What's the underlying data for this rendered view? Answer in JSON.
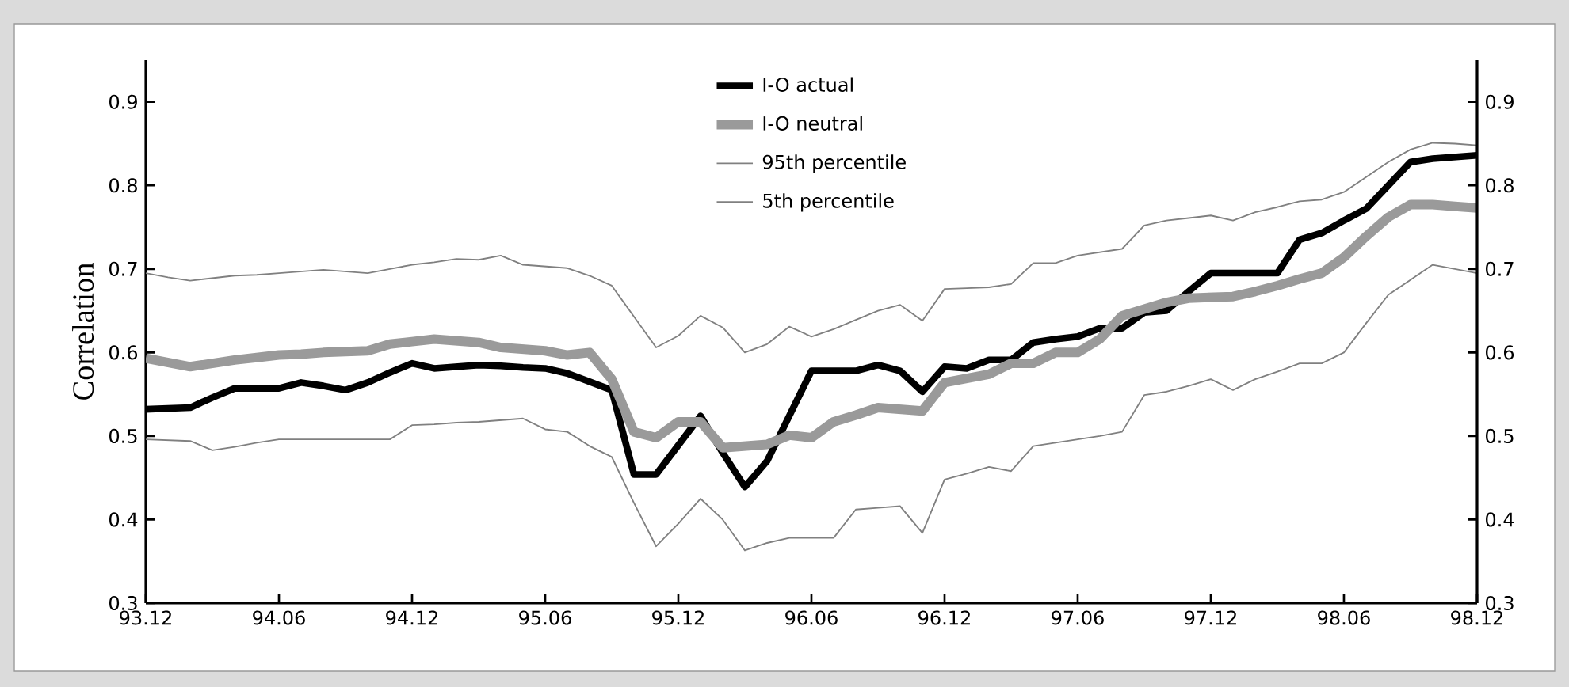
{
  "chart_data": {
    "type": "line",
    "ylabel": "Correlation",
    "categories": [
      "93.12",
      null,
      null,
      null,
      null,
      null,
      "94.06",
      null,
      null,
      null,
      null,
      null,
      "94.12",
      null,
      null,
      null,
      null,
      null,
      "95.06",
      null,
      null,
      null,
      null,
      null,
      "95.12",
      null,
      null,
      null,
      null,
      null,
      "96.06",
      null,
      null,
      null,
      null,
      null,
      "96.12",
      null,
      null,
      null,
      null,
      null,
      "97.06",
      null,
      null,
      null,
      null,
      null,
      "97.12",
      null,
      null,
      null,
      null,
      null,
      "98.06",
      null,
      null,
      null,
      null,
      null,
      "98.12"
    ],
    "ylim": [
      0.3,
      0.95
    ],
    "yticks": [
      0.3,
      0.4,
      0.5,
      0.6,
      0.7,
      0.8,
      0.9
    ],
    "y2lim": [
      0.3,
      0.95
    ],
    "y2ticks": [
      0.3,
      0.4,
      0.5,
      0.6,
      0.7,
      0.8,
      0.9
    ],
    "legend": "top",
    "series": [
      {
        "name": "I-O actual",
        "color": "#000000",
        "values": [
          0.532,
          0.533,
          0.534,
          0.546,
          0.557,
          0.557,
          0.557,
          0.564,
          0.56,
          0.555,
          0.564,
          0.576,
          0.587,
          0.581,
          0.583,
          0.585,
          0.584,
          0.582,
          0.581,
          0.575,
          0.565,
          0.555,
          0.454,
          0.454,
          0.489,
          0.524,
          0.48,
          0.439,
          0.47,
          0.524,
          0.578,
          0.578,
          0.578,
          0.585,
          0.578,
          0.553,
          0.583,
          0.581,
          0.591,
          0.591,
          0.612,
          0.616,
          0.619,
          0.629,
          0.629,
          0.648,
          0.65,
          0.673,
          0.695,
          0.695,
          0.695,
          0.695,
          0.735,
          0.743,
          0.758,
          0.772,
          0.8,
          0.828,
          0.832,
          0.834,
          0.836
        ]
      },
      {
        "name": "I-O neutral",
        "color": "#9a9a9a",
        "values": [
          0.593,
          0.588,
          0.583,
          0.587,
          0.591,
          0.594,
          0.597,
          0.598,
          0.6,
          0.601,
          0.602,
          0.61,
          0.613,
          0.616,
          0.614,
          0.612,
          0.606,
          0.604,
          0.602,
          0.597,
          0.6,
          0.568,
          0.505,
          0.498,
          0.517,
          0.517,
          0.486,
          0.488,
          0.49,
          0.501,
          0.498,
          0.517,
          0.525,
          0.534,
          0.532,
          0.53,
          0.564,
          0.569,
          0.574,
          0.587,
          0.587,
          0.6,
          0.6,
          0.616,
          0.644,
          0.652,
          0.66,
          0.665,
          0.666,
          0.667,
          0.673,
          0.68,
          0.688,
          0.695,
          0.714,
          0.739,
          0.762,
          0.777,
          0.777,
          0.775,
          0.773
        ]
      },
      {
        "name": "95th percentile",
        "color": "#808080",
        "values": [
          0.695,
          0.69,
          0.686,
          0.689,
          0.692,
          0.693,
          0.695,
          0.697,
          0.699,
          0.697,
          0.695,
          0.7,
          0.705,
          0.708,
          0.712,
          0.711,
          0.716,
          0.705,
          0.703,
          0.701,
          0.692,
          0.68,
          0.643,
          0.606,
          0.62,
          0.644,
          0.63,
          0.6,
          0.61,
          0.631,
          0.619,
          0.628,
          0.639,
          0.65,
          0.657,
          0.638,
          0.676,
          0.677,
          0.678,
          0.682,
          0.707,
          0.707,
          0.716,
          0.72,
          0.724,
          0.752,
          0.758,
          0.761,
          0.764,
          0.758,
          0.768,
          0.774,
          0.781,
          0.783,
          0.792,
          0.81,
          0.828,
          0.843,
          0.851,
          0.85,
          0.848
        ]
      },
      {
        "name": "5th percentile",
        "color": "#808080",
        "values": [
          0.496,
          0.495,
          0.494,
          0.483,
          0.487,
          0.492,
          0.496,
          0.496,
          0.496,
          0.496,
          0.496,
          0.496,
          0.513,
          0.514,
          0.516,
          0.517,
          0.519,
          0.521,
          0.508,
          0.505,
          0.488,
          0.475,
          0.42,
          0.368,
          0.395,
          0.425,
          0.4,
          0.363,
          0.372,
          0.378,
          0.378,
          0.378,
          0.412,
          0.414,
          0.416,
          0.384,
          0.448,
          0.455,
          0.463,
          0.458,
          0.488,
          0.492,
          0.496,
          0.5,
          0.505,
          0.549,
          0.553,
          0.56,
          0.568,
          0.555,
          0.568,
          0.577,
          0.587,
          0.587,
          0.6,
          0.635,
          0.669,
          0.687,
          0.705,
          0.7,
          0.695
        ]
      }
    ]
  }
}
